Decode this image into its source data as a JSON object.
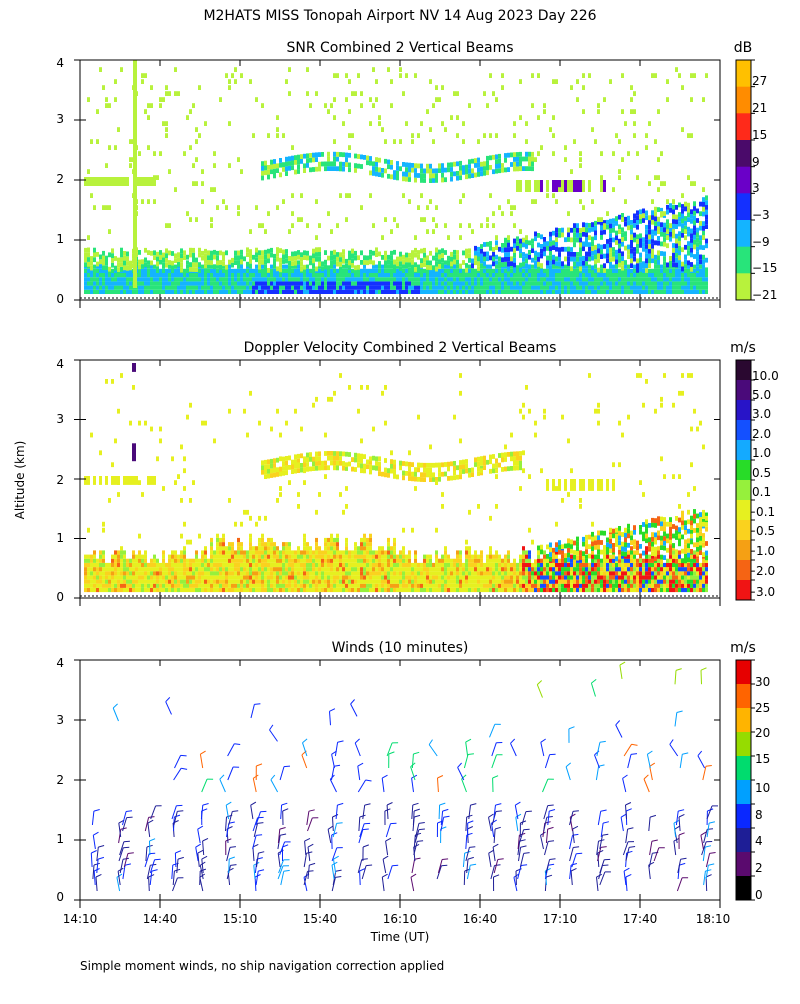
{
  "figure": {
    "title": "M2HATS MISS Tonopah Airport NV  14 Aug 2023 Day 226",
    "footer": "Simple moment winds, no ship navigation correction applied",
    "y_axis_label": "Altitude (km)",
    "x_axis_label": "Time (UT)"
  },
  "chart_data": [
    {
      "type": "heatmap",
      "title": "SNR Combined 2 Vertical Beams",
      "y_ticks": [
        "0",
        "1",
        "2",
        "3",
        "4"
      ],
      "ylim": [
        0,
        4
      ],
      "x_range": [
        "14:10",
        "18:10"
      ],
      "colorbar": {
        "unit": "dB",
        "labels": [
          "27",
          "21",
          "15",
          "9",
          "3",
          "−3",
          "−9",
          "−15",
          "−21"
        ],
        "colors": [
          "#ffc000",
          "#ff8c00",
          "#ff2a1a",
          "#4a0a6a",
          "#6a00c8",
          "#1430ff",
          "#14b4ff",
          "#28e47a",
          "#b8f23c"
        ]
      },
      "layers": [
        {
          "name": "surface band",
          "alt_km": [
            0.05,
            0.6
          ],
          "dominant": "−15 to −9 dB"
        },
        {
          "name": "lower layer growth after 16:40",
          "alt_km": [
            0.1,
            1.7
          ],
          "dominant": "−9 to 3 dB"
        },
        {
          "name": "layer near 2.2 km",
          "alt_km": [
            1.9,
            2.4
          ],
          "dominant": "−15 to −9 dB"
        },
        {
          "name": "sparse returns",
          "alt_km": [
            2.4,
            3.9
          ],
          "dominant": "−21 dB"
        }
      ]
    },
    {
      "type": "heatmap",
      "title": "Doppler Velocity Combined 2 Vertical Beams",
      "y_ticks": [
        "0",
        "1",
        "2",
        "3",
        "4"
      ],
      "ylim": [
        0,
        4
      ],
      "x_range": [
        "14:10",
        "18:10"
      ],
      "colorbar": {
        "unit": "m/s",
        "labels": [
          "10.0",
          "5.0",
          "3.0",
          "2.0",
          "1.0",
          "0.5",
          "0.1",
          "−0.1",
          "−0.5",
          "−1.0",
          "−2.0",
          "−3.0"
        ],
        "colors": [
          "#2a0830",
          "#4a0a7a",
          "#2814c8",
          "#1450ff",
          "#14aaff",
          "#28dc28",
          "#96f03c",
          "#e6f020",
          "#fad21e",
          "#f5a014",
          "#f56414",
          "#f01414"
        ]
      },
      "layers": [
        {
          "name": "boundary layer",
          "alt_km": [
            0.1,
            1.0
          ],
          "dominant": "0.1 to −1.0 m/s"
        },
        {
          "name": "layer near 2.2 km",
          "alt_km": [
            2.0,
            2.4
          ],
          "dominant": "−0.1 to −0.5 m/s"
        },
        {
          "name": "convective region after 16:50",
          "alt_km": [
            0.1,
            1.5
          ],
          "dominant": "mixed −3.0 to 2.0 m/s"
        }
      ]
    },
    {
      "type": "scatter",
      "title": "Winds (10 minutes)",
      "y_ticks": [
        "0",
        "1",
        "2",
        "3",
        "4"
      ],
      "ylim": [
        0,
        4
      ],
      "x_ticks": [
        "14:10",
        "14:40",
        "15:10",
        "15:40",
        "16:10",
        "16:40",
        "17:10",
        "17:40",
        "18:10"
      ],
      "colorbar": {
        "unit": "m/s",
        "labels": [
          "30",
          "25",
          "20",
          "15",
          "10",
          "8",
          "4",
          "2",
          "0"
        ],
        "colors": [
          "#e60000",
          "#ff6400",
          "#ffb400",
          "#96dc00",
          "#00dc6e",
          "#00a0ff",
          "#0a28ff",
          "#1e1e96",
          "#5a0a6e",
          "#000000"
        ]
      },
      "note": "wind barbs at 10-minute intervals, mostly 2–8 m/s below 1.5 km"
    }
  ]
}
